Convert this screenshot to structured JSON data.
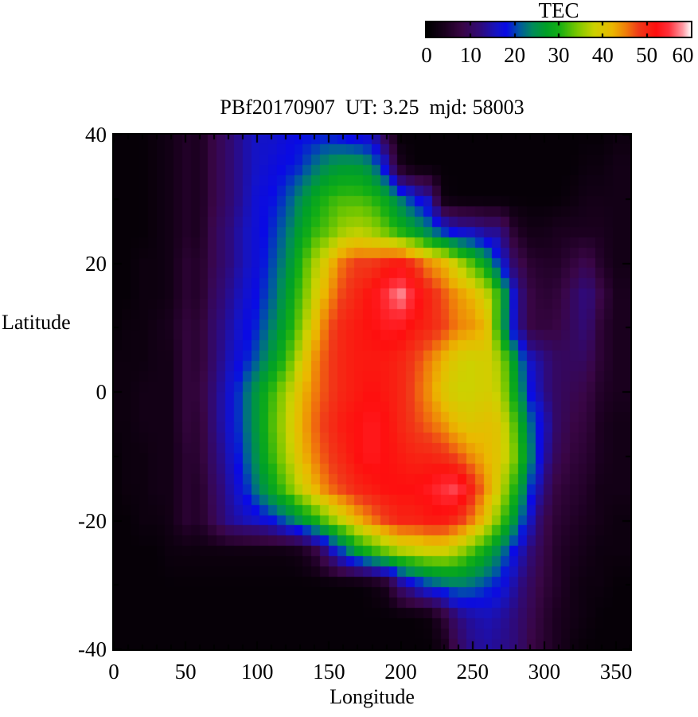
{
  "chart_data": {
    "type": "heatmap",
    "title": "PBf20170907  UT: 3.25  mjd: 58003",
    "xlabel": "Longitude",
    "ylabel": "Latitude",
    "xlim": [
      0,
      360
    ],
    "ylim": [
      -40,
      40
    ],
    "xticks": [
      0,
      50,
      100,
      150,
      200,
      250,
      300,
      350
    ],
    "yticks": [
      40,
      20,
      0,
      -20,
      -40
    ],
    "grid_on": false,
    "colorbar": {
      "title": "TEC",
      "min": 0,
      "max": 60,
      "ticks": [
        0,
        10,
        20,
        30,
        40,
        50,
        60
      ],
      "position": "top-right"
    },
    "colormap_stops": [
      [
        0,
        0,
        0,
        0
      ],
      [
        4,
        26,
        0,
        30
      ],
      [
        8,
        58,
        6,
        70
      ],
      [
        12,
        48,
        10,
        120
      ],
      [
        16,
        20,
        20,
        200
      ],
      [
        18,
        10,
        10,
        230
      ],
      [
        21,
        0,
        90,
        160
      ],
      [
        24,
        0,
        140,
        90
      ],
      [
        27,
        0,
        160,
        40
      ],
      [
        30,
        20,
        175,
        20
      ],
      [
        34,
        120,
        200,
        0
      ],
      [
        38,
        205,
        210,
        0
      ],
      [
        42,
        235,
        185,
        0
      ],
      [
        45,
        240,
        130,
        10
      ],
      [
        48,
        240,
        60,
        25
      ],
      [
        52,
        255,
        15,
        15
      ],
      [
        55,
        255,
        50,
        60
      ],
      [
        58,
        255,
        150,
        160
      ],
      [
        60,
        255,
        255,
        255
      ]
    ],
    "grid": {
      "lon_start": 0,
      "lon_step": 10,
      "lon_count": 36,
      "lat_start": 40,
      "lat_step": -5,
      "lat_count": 17,
      "units": "TECU",
      "values": [
        [
          1,
          1,
          1,
          2,
          3,
          5,
          4,
          8,
          11,
          14,
          16,
          16,
          17,
          18,
          18,
          18,
          17,
          16,
          15,
          8,
          1,
          1,
          1,
          1,
          1,
          1,
          1,
          1,
          1,
          1,
          1,
          1,
          1,
          1,
          1,
          2
        ],
        [
          1,
          1,
          1,
          2,
          3,
          5,
          4,
          8,
          11,
          14,
          16,
          17,
          18,
          19,
          22,
          25,
          26,
          26,
          24,
          16,
          4,
          1,
          1,
          1,
          1,
          1,
          1,
          1,
          1,
          1,
          1,
          1,
          1,
          2,
          2,
          3
        ],
        [
          1,
          1,
          1,
          2,
          3,
          5,
          4,
          8,
          11,
          14,
          17,
          18,
          20,
          24,
          28,
          31,
          32,
          32,
          31,
          28,
          23,
          18,
          15,
          2,
          1,
          1,
          1,
          1,
          1,
          1,
          1,
          1,
          2,
          3,
          3,
          3
        ],
        [
          1,
          1,
          1,
          2,
          3,
          5,
          4,
          9,
          12,
          15,
          17,
          19,
          22,
          27,
          31,
          33,
          36,
          37,
          36,
          33,
          30,
          27,
          23,
          19,
          16,
          15,
          13,
          13,
          5,
          3,
          3,
          4,
          4,
          4,
          4,
          3
        ],
        [
          1,
          1,
          2,
          2,
          3,
          6,
          5,
          9,
          12,
          15,
          17,
          20,
          24,
          30,
          36,
          41,
          46,
          48,
          48,
          50,
          51,
          48,
          44,
          42,
          37,
          32,
          27,
          18,
          10,
          6,
          5,
          5,
          7,
          9,
          5,
          3
        ],
        [
          1,
          1,
          2,
          2,
          3,
          6,
          5,
          10,
          13,
          16,
          18,
          21,
          26,
          32,
          38,
          44,
          48,
          50,
          52,
          55,
          58,
          54,
          50,
          47,
          44,
          42,
          38,
          30,
          15,
          8,
          6,
          7,
          10,
          13,
          8,
          4
        ],
        [
          1,
          2,
          2,
          3,
          4,
          7,
          6,
          11,
          14,
          17,
          19,
          23,
          28,
          34,
          41,
          47,
          50,
          51,
          52,
          53,
          53,
          51,
          50,
          48,
          45,
          44,
          42,
          28,
          15,
          8,
          7,
          8,
          10,
          12,
          6,
          4
        ],
        [
          2,
          2,
          2,
          3,
          3,
          7,
          6,
          11,
          15,
          18,
          21,
          26,
          31,
          38,
          44,
          48,
          50,
          51,
          51,
          51,
          50,
          48,
          45,
          42,
          39,
          38,
          39,
          36,
          26,
          16,
          13,
          10,
          10,
          10,
          6,
          4
        ],
        [
          2,
          2,
          3,
          3,
          3,
          7,
          7,
          12,
          16,
          21,
          26,
          31,
          36,
          41,
          45,
          48,
          50,
          51,
          52,
          51,
          50,
          47,
          44,
          40,
          38,
          38,
          39,
          37,
          28,
          18,
          13,
          10,
          9,
          8,
          5,
          4
        ],
        [
          2,
          2,
          3,
          3,
          3,
          7,
          6,
          12,
          16,
          21,
          26,
          32,
          37,
          42,
          46,
          49,
          51,
          52,
          53,
          52,
          50,
          48,
          46,
          44,
          41,
          40,
          41,
          40,
          32,
          22,
          16,
          10,
          8,
          7,
          4,
          3
        ],
        [
          1,
          2,
          2,
          3,
          3,
          6,
          6,
          11,
          15,
          20,
          25,
          31,
          36,
          41,
          45,
          48,
          50,
          52,
          53,
          52,
          51,
          50,
          50,
          49,
          47,
          44,
          42,
          40,
          34,
          24,
          15,
          9,
          7,
          6,
          4,
          3
        ],
        [
          1,
          2,
          2,
          3,
          3,
          6,
          5,
          10,
          14,
          18,
          23,
          28,
          33,
          38,
          42,
          46,
          48,
          50,
          51,
          52,
          52,
          52,
          53,
          55,
          56,
          50,
          44,
          38,
          30,
          20,
          12,
          7,
          6,
          5,
          3,
          3
        ],
        [
          1,
          1,
          2,
          2,
          3,
          6,
          5,
          9,
          13,
          15,
          16,
          18,
          21,
          25,
          29,
          34,
          38,
          42,
          45,
          48,
          50,
          50,
          51,
          51,
          49,
          45,
          40,
          33,
          25,
          16,
          9,
          6,
          5,
          4,
          3,
          2
        ],
        [
          1,
          1,
          1,
          1,
          2,
          2,
          2,
          2,
          2,
          2,
          2,
          2,
          2,
          3,
          6,
          13,
          20,
          26,
          30,
          33,
          36,
          37,
          38,
          38,
          36,
          32,
          28,
          23,
          17,
          12,
          8,
          5,
          4,
          3,
          2,
          2
        ],
        [
          1,
          1,
          1,
          1,
          1,
          1,
          1,
          1,
          1,
          1,
          1,
          1,
          1,
          1,
          1,
          1,
          1,
          1,
          2,
          4,
          12,
          17,
          20,
          22,
          23,
          22,
          20,
          18,
          14,
          10,
          7,
          5,
          3,
          2,
          2,
          1
        ],
        [
          1,
          1,
          1,
          1,
          1,
          1,
          1,
          1,
          1,
          1,
          1,
          1,
          1,
          1,
          1,
          1,
          1,
          1,
          1,
          1,
          1,
          1,
          2,
          6,
          12,
          14,
          15,
          14,
          12,
          9,
          6,
          4,
          3,
          2,
          1,
          1
        ],
        [
          1,
          1,
          1,
          1,
          1,
          1,
          1,
          1,
          1,
          1,
          1,
          1,
          1,
          1,
          1,
          1,
          1,
          1,
          1,
          1,
          1,
          1,
          1,
          3,
          10,
          13,
          14,
          13,
          12,
          8,
          6,
          4,
          2,
          1,
          1,
          1
        ]
      ]
    },
    "hotspots": [
      {
        "lon": 200,
        "lat": 15,
        "value": 58,
        "note": "bright white-pink peak, north"
      },
      {
        "lon": 237,
        "lat": -15,
        "value": 56,
        "note": "bright white-pink peak, south"
      }
    ]
  }
}
